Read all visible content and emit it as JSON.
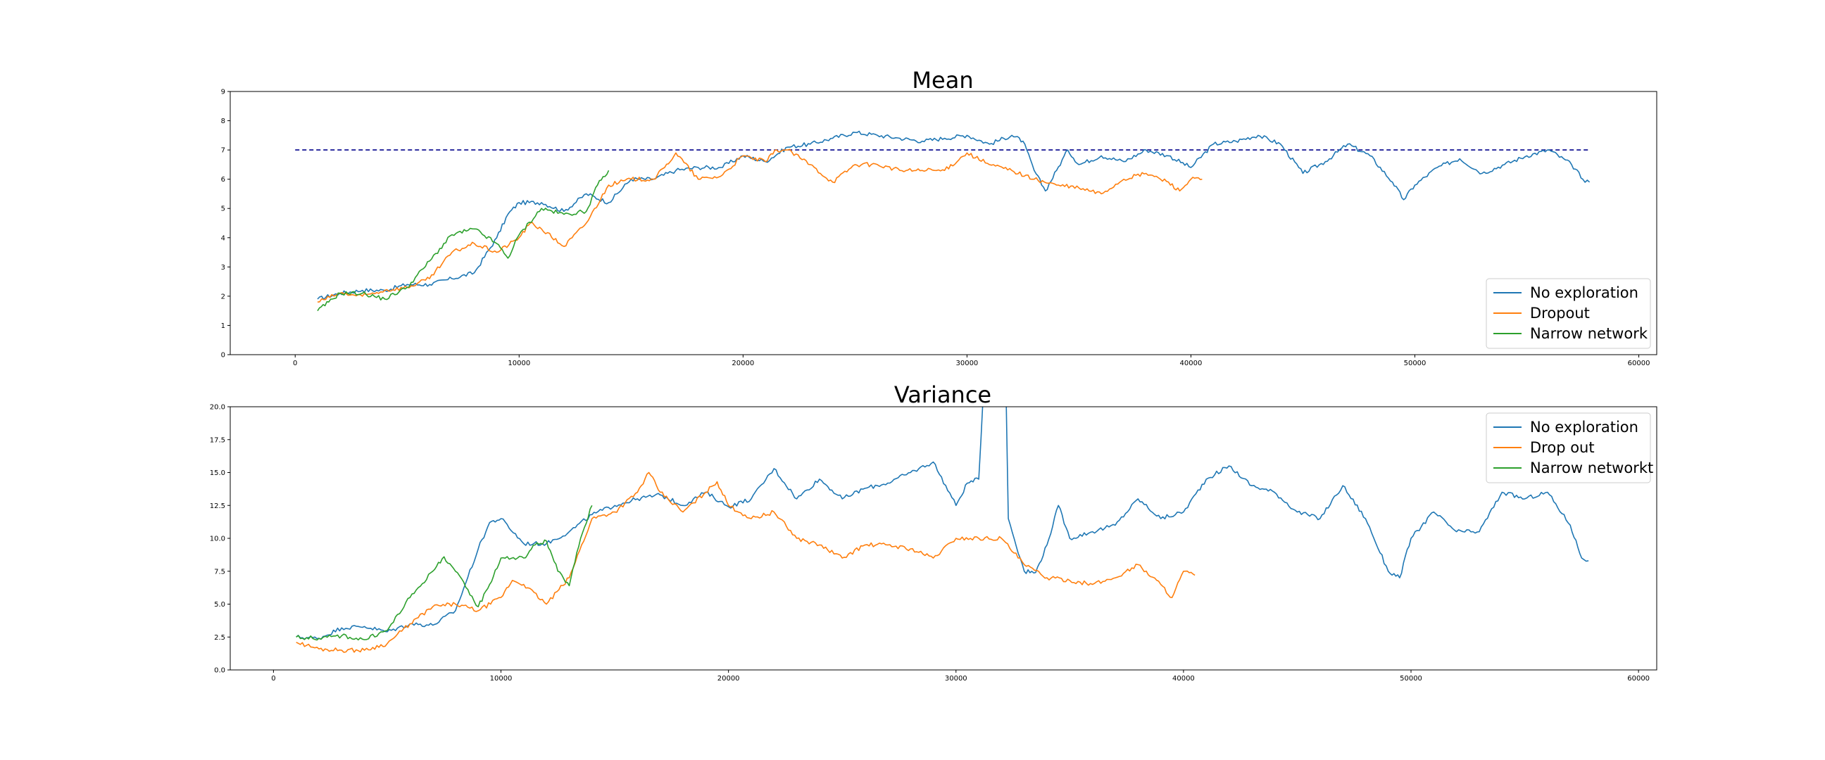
{
  "chart_data": [
    {
      "type": "line",
      "title": "Mean",
      "xlabel": "",
      "ylabel": "",
      "xlim": [
        -2900,
        60800
      ],
      "ylim": [
        0,
        9
      ],
      "xticks": [
        0,
        10000,
        20000,
        30000,
        40000,
        50000,
        60000
      ],
      "yticks": [
        0,
        1,
        2,
        3,
        4,
        5,
        6,
        7,
        8,
        9
      ],
      "ytick_labels": [
        "0",
        "1",
        "2",
        "3",
        "4",
        "5",
        "6",
        "7",
        "8",
        "9"
      ],
      "grid": false,
      "legend_position": "lower-right",
      "reference_line": {
        "y": 7,
        "x_range": [
          0,
          57800
        ],
        "color": "#00008b",
        "style": "dashed"
      },
      "series": [
        {
          "name": "No exploration",
          "color": "#1f77b4",
          "points": [
            [
              1000,
              1.9
            ],
            [
              2000,
              2.1
            ],
            [
              3000,
              2.2
            ],
            [
              4000,
              2.2
            ],
            [
              5000,
              2.4
            ],
            [
              6000,
              2.4
            ],
            [
              7000,
              2.6
            ],
            [
              8000,
              2.8
            ],
            [
              9000,
              4.0
            ],
            [
              9500,
              4.8
            ],
            [
              10000,
              5.2
            ],
            [
              11000,
              5.2
            ],
            [
              12000,
              4.9
            ],
            [
              13000,
              5.5
            ],
            [
              14000,
              5.2
            ],
            [
              15000,
              6.0
            ],
            [
              16000,
              6.0
            ],
            [
              17000,
              6.3
            ],
            [
              18000,
              6.4
            ],
            [
              19000,
              6.4
            ],
            [
              20000,
              6.8
            ],
            [
              21000,
              6.6
            ],
            [
              22000,
              7.1
            ],
            [
              23000,
              7.2
            ],
            [
              24000,
              7.4
            ],
            [
              25000,
              7.6
            ],
            [
              26000,
              7.5
            ],
            [
              27000,
              7.4
            ],
            [
              28000,
              7.3
            ],
            [
              29000,
              7.4
            ],
            [
              30000,
              7.5
            ],
            [
              31000,
              7.2
            ],
            [
              32000,
              7.5
            ],
            [
              32500,
              7.3
            ],
            [
              33000,
              6.3
            ],
            [
              33500,
              5.6
            ],
            [
              34000,
              6.3
            ],
            [
              34500,
              7.0
            ],
            [
              35000,
              6.5
            ],
            [
              36000,
              6.8
            ],
            [
              37000,
              6.6
            ],
            [
              38000,
              7.0
            ],
            [
              39000,
              6.8
            ],
            [
              40000,
              6.4
            ],
            [
              41000,
              7.2
            ],
            [
              42000,
              7.3
            ],
            [
              43000,
              7.5
            ],
            [
              44000,
              7.2
            ],
            [
              45000,
              6.2
            ],
            [
              46000,
              6.6
            ],
            [
              47000,
              7.2
            ],
            [
              48000,
              6.8
            ],
            [
              49000,
              5.9
            ],
            [
              49500,
              5.3
            ],
            [
              50000,
              5.8
            ],
            [
              51000,
              6.4
            ],
            [
              52000,
              6.7
            ],
            [
              53000,
              6.2
            ],
            [
              54000,
              6.5
            ],
            [
              55000,
              6.8
            ],
            [
              56000,
              7.0
            ],
            [
              57000,
              6.5
            ],
            [
              57500,
              6.0
            ],
            [
              57800,
              5.9
            ]
          ]
        },
        {
          "name": "Dropout",
          "color": "#ff7f0e",
          "points": [
            [
              1000,
              1.8
            ],
            [
              2000,
              2.1
            ],
            [
              3000,
              2.0
            ],
            [
              4000,
              2.2
            ],
            [
              5000,
              2.3
            ],
            [
              6000,
              2.6
            ],
            [
              7000,
              3.5
            ],
            [
              8000,
              3.8
            ],
            [
              9000,
              3.5
            ],
            [
              10000,
              4.0
            ],
            [
              10500,
              4.5
            ],
            [
              11000,
              4.3
            ],
            [
              12000,
              3.7
            ],
            [
              13000,
              4.5
            ],
            [
              14000,
              5.8
            ],
            [
              15000,
              6.0
            ],
            [
              16000,
              6.0
            ],
            [
              16500,
              6.4
            ],
            [
              17000,
              6.9
            ],
            [
              18000,
              6.0
            ],
            [
              19000,
              6.1
            ],
            [
              20000,
              6.8
            ],
            [
              21000,
              6.6
            ],
            [
              21500,
              7.0
            ],
            [
              22000,
              7.0
            ],
            [
              23000,
              6.5
            ],
            [
              24000,
              5.9
            ],
            [
              25000,
              6.5
            ],
            [
              26000,
              6.5
            ],
            [
              27000,
              6.3
            ],
            [
              28000,
              6.3
            ],
            [
              29000,
              6.3
            ],
            [
              30000,
              6.9
            ],
            [
              31000,
              6.5
            ],
            [
              32000,
              6.3
            ],
            [
              33000,
              6.0
            ],
            [
              34000,
              5.8
            ],
            [
              35000,
              5.7
            ],
            [
              36000,
              5.5
            ],
            [
              37000,
              6.0
            ],
            [
              38000,
              6.2
            ],
            [
              39000,
              5.9
            ],
            [
              39500,
              5.6
            ],
            [
              40000,
              6.0
            ],
            [
              40500,
              6.0
            ]
          ]
        },
        {
          "name": "Narrow network",
          "color": "#2ca02c",
          "points": [
            [
              1000,
              1.5
            ],
            [
              1500,
              1.8
            ],
            [
              2000,
              2.1
            ],
            [
              3000,
              2.1
            ],
            [
              4000,
              1.9
            ],
            [
              5000,
              2.3
            ],
            [
              6000,
              3.2
            ],
            [
              7000,
              4.1
            ],
            [
              8000,
              4.3
            ],
            [
              9000,
              3.8
            ],
            [
              9500,
              3.3
            ],
            [
              10000,
              4.1
            ],
            [
              11000,
              5.0
            ],
            [
              12000,
              4.8
            ],
            [
              13000,
              4.9
            ],
            [
              13500,
              5.8
            ],
            [
              14000,
              6.3
            ]
          ]
        }
      ]
    },
    {
      "type": "line",
      "title": "Variance",
      "xlabel": "",
      "ylabel": "",
      "xlim": [
        -1900,
        60800
      ],
      "ylim": [
        0,
        20
      ],
      "xticks": [
        0,
        10000,
        20000,
        30000,
        40000,
        50000,
        60000
      ],
      "yticks": [
        0,
        2.5,
        5,
        7.5,
        10,
        12.5,
        15,
        17.5,
        20
      ],
      "ytick_labels": [
        "0.0",
        "2.5",
        "5.0",
        "7.5",
        "10.0",
        "12.5",
        "15.0",
        "17.5",
        "20.0"
      ],
      "grid": false,
      "legend_position": "upper-right",
      "series": [
        {
          "name": "No exploration",
          "color": "#1f77b4",
          "points": [
            [
              1000,
              2.5
            ],
            [
              2000,
              2.4
            ],
            [
              3000,
              3.2
            ],
            [
              4000,
              3.3
            ],
            [
              5000,
              2.9
            ],
            [
              6000,
              3.5
            ],
            [
              7000,
              3.4
            ],
            [
              8000,
              4.5
            ],
            [
              9000,
              9.2
            ],
            [
              9500,
              11.2
            ],
            [
              10000,
              11.5
            ],
            [
              11000,
              9.6
            ],
            [
              12000,
              9.6
            ],
            [
              13000,
              10.5
            ],
            [
              14000,
              11.8
            ],
            [
              15000,
              12.5
            ],
            [
              16000,
              13.0
            ],
            [
              17000,
              13.3
            ],
            [
              18000,
              12.5
            ],
            [
              19000,
              13.5
            ],
            [
              20000,
              12.4
            ],
            [
              21000,
              13.0
            ],
            [
              22000,
              15.3
            ],
            [
              23000,
              13.0
            ],
            [
              24000,
              14.5
            ],
            [
              25000,
              13.0
            ],
            [
              26000,
              13.8
            ],
            [
              27000,
              14.2
            ],
            [
              28000,
              15.0
            ],
            [
              29000,
              15.8
            ],
            [
              30000,
              12.5
            ],
            [
              30500,
              14.2
            ],
            [
              31000,
              14.5
            ],
            [
              31200,
              21
            ],
            [
              32200,
              21
            ],
            [
              32300,
              11.5
            ],
            [
              33000,
              7.5
            ],
            [
              33500,
              7.4
            ],
            [
              34000,
              9.5
            ],
            [
              34500,
              12.5
            ],
            [
              35000,
              10.0
            ],
            [
              36000,
              10.5
            ],
            [
              37000,
              11.0
            ],
            [
              38000,
              13.0
            ],
            [
              39000,
              11.5
            ],
            [
              40000,
              12.0
            ],
            [
              41000,
              14.5
            ],
            [
              42000,
              15.5
            ],
            [
              43000,
              14.0
            ],
            [
              44000,
              13.5
            ],
            [
              45000,
              12.0
            ],
            [
              46000,
              11.5
            ],
            [
              47000,
              14.0
            ],
            [
              48000,
              11.5
            ],
            [
              49000,
              7.5
            ],
            [
              49500,
              7.0
            ],
            [
              50000,
              10.0
            ],
            [
              51000,
              12.0
            ],
            [
              52000,
              10.5
            ],
            [
              53000,
              10.5
            ],
            [
              54000,
              13.5
            ],
            [
              55000,
              13.0
            ],
            [
              56000,
              13.5
            ],
            [
              57000,
              11.0
            ],
            [
              57500,
              8.5
            ],
            [
              57800,
              8.3
            ]
          ]
        },
        {
          "name": "Drop out",
          "color": "#ff7f0e",
          "points": [
            [
              1000,
              2.1
            ],
            [
              2000,
              1.6
            ],
            [
              3000,
              1.5
            ],
            [
              4000,
              1.5
            ],
            [
              5000,
              2.0
            ],
            [
              6000,
              3.5
            ],
            [
              7000,
              4.8
            ],
            [
              8000,
              5.0
            ],
            [
              9000,
              4.5
            ],
            [
              10000,
              5.5
            ],
            [
              10500,
              6.8
            ],
            [
              11000,
              6.5
            ],
            [
              12000,
              5.0
            ],
            [
              13000,
              7.0
            ],
            [
              14000,
              11.5
            ],
            [
              15000,
              12.0
            ],
            [
              16000,
              13.5
            ],
            [
              16500,
              15.0
            ],
            [
              17000,
              13.5
            ],
            [
              18000,
              12.0
            ],
            [
              19000,
              13.5
            ],
            [
              19500,
              14.3
            ],
            [
              20000,
              12.5
            ],
            [
              21000,
              11.5
            ],
            [
              22000,
              12.0
            ],
            [
              23000,
              10.0
            ],
            [
              24000,
              9.5
            ],
            [
              25000,
              8.5
            ],
            [
              26000,
              9.5
            ],
            [
              27000,
              9.5
            ],
            [
              28000,
              9.2
            ],
            [
              29000,
              8.5
            ],
            [
              30000,
              10.0
            ],
            [
              31000,
              10.0
            ],
            [
              32000,
              10.0
            ],
            [
              33000,
              8.0
            ],
            [
              34000,
              7.0
            ],
            [
              35000,
              6.8
            ],
            [
              36000,
              6.5
            ],
            [
              37000,
              7.0
            ],
            [
              38000,
              8.0
            ],
            [
              39000,
              6.5
            ],
            [
              39500,
              5.5
            ],
            [
              40000,
              7.5
            ],
            [
              40500,
              7.2
            ]
          ]
        },
        {
          "name": "Narrow networkt",
          "color": "#2ca02c",
          "points": [
            [
              1000,
              2.5
            ],
            [
              2000,
              2.4
            ],
            [
              3000,
              2.6
            ],
            [
              4000,
              2.3
            ],
            [
              5000,
              3.0
            ],
            [
              6000,
              5.5
            ],
            [
              7000,
              7.5
            ],
            [
              7500,
              8.6
            ],
            [
              8000,
              7.5
            ],
            [
              9000,
              4.8
            ],
            [
              9500,
              6.5
            ],
            [
              10000,
              8.5
            ],
            [
              11000,
              8.5
            ],
            [
              11500,
              9.5
            ],
            [
              12000,
              9.8
            ],
            [
              12500,
              7.5
            ],
            [
              13000,
              6.4
            ],
            [
              13500,
              10.0
            ],
            [
              14000,
              12.5
            ]
          ]
        }
      ]
    }
  ]
}
